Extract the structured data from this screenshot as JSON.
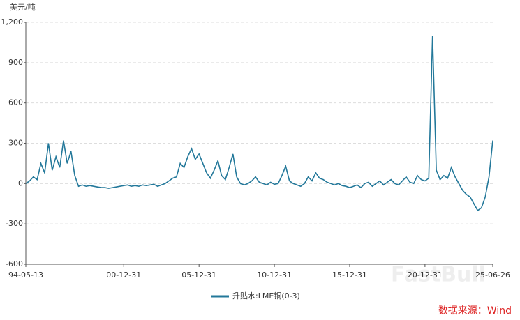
{
  "chart_data": {
    "type": "line",
    "y_label": "美元/吨",
    "source": "数据来源：Wind",
    "watermark": "FastBull",
    "categories": [
      "94-05-13",
      null,
      null,
      null,
      null,
      null,
      null,
      null,
      null,
      null,
      null,
      null,
      null,
      null,
      null,
      null,
      null,
      null,
      null,
      null,
      null,
      null,
      null,
      null,
      null,
      null,
      "00-12-31",
      null,
      null,
      null,
      null,
      null,
      null,
      null,
      null,
      null,
      null,
      null,
      null,
      null,
      null,
      null,
      null,
      null,
      null,
      null,
      "05-12-31",
      null,
      null,
      null,
      null,
      null,
      null,
      null,
      null,
      null,
      null,
      null,
      null,
      null,
      null,
      null,
      null,
      null,
      null,
      null,
      "10-12-31",
      null,
      null,
      null,
      null,
      null,
      null,
      null,
      null,
      null,
      null,
      null,
      null,
      null,
      null,
      null,
      null,
      null,
      null,
      null,
      "15-12-31",
      null,
      null,
      null,
      null,
      null,
      null,
      null,
      null,
      null,
      null,
      null,
      null,
      null,
      null,
      null,
      null,
      null,
      null,
      null,
      "20-12-31",
      null,
      null,
      null,
      null,
      null,
      null,
      null,
      null,
      null,
      null,
      null,
      null,
      null,
      null,
      null,
      null,
      null,
      "25-06-26"
    ],
    "series": [
      {
        "name": "升贴水:LME铜(0-3)",
        "color": "#23789a",
        "values": [
          0,
          20,
          50,
          30,
          150,
          80,
          300,
          100,
          200,
          120,
          320,
          150,
          240,
          60,
          -20,
          -10,
          -20,
          -15,
          -20,
          -25,
          -30,
          -30,
          -35,
          -30,
          -25,
          -20,
          -15,
          -10,
          -20,
          -15,
          -20,
          -10,
          -15,
          -10,
          -5,
          -20,
          -10,
          0,
          20,
          40,
          50,
          150,
          120,
          200,
          260,
          180,
          220,
          150,
          80,
          40,
          100,
          170,
          60,
          30,
          120,
          220,
          50,
          0,
          -10,
          0,
          20,
          50,
          10,
          0,
          -10,
          10,
          -5,
          0,
          60,
          130,
          20,
          0,
          -10,
          -20,
          0,
          50,
          20,
          80,
          40,
          30,
          10,
          0,
          -10,
          0,
          -15,
          -20,
          -30,
          -20,
          -10,
          -30,
          0,
          10,
          -20,
          0,
          20,
          -10,
          10,
          30,
          0,
          -10,
          20,
          50,
          10,
          0,
          60,
          30,
          20,
          40,
          1100,
          100,
          30,
          60,
          40,
          120,
          50,
          0,
          -50,
          -80,
          -100,
          -150,
          -200,
          -180,
          -100,
          50,
          320
        ]
      }
    ],
    "ylim": [
      -600,
      1200
    ],
    "yticks": [
      -600,
      -300,
      0,
      300,
      600,
      900,
      {
        "value": 1200,
        "label": "1,200"
      }
    ],
    "grid": true
  }
}
